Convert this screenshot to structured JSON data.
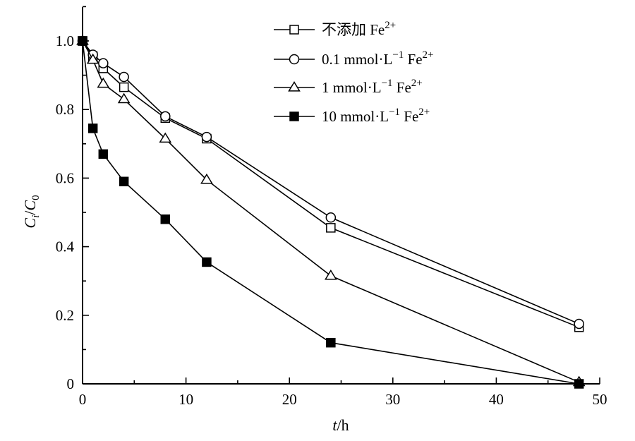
{
  "chart_data": {
    "type": "line",
    "xlabel": {
      "italic": "t",
      "rest": "/h"
    },
    "ylabel": {
      "main": "C",
      "main_sub": "i",
      "sep": "/",
      "denom": "C",
      "denom_sub": "0"
    },
    "xlim": [
      0,
      50
    ],
    "ylim": [
      0,
      1.1
    ],
    "x_ticks": [
      0,
      10,
      20,
      30,
      40,
      50
    ],
    "x_tick_labels": [
      "0",
      "10",
      "20",
      "30",
      "40",
      "50"
    ],
    "y_ticks": [
      0,
      0.2,
      0.4,
      0.6,
      0.8,
      1.0
    ],
    "y_tick_labels": [
      "0",
      "0.2",
      "0.4",
      "0.6",
      "0.8",
      "1.0"
    ],
    "grid": false,
    "legend_position": "top-right",
    "x": [
      0,
      1,
      2,
      4,
      8,
      12,
      24,
      48
    ],
    "series": [
      {
        "name": "不添加 Fe",
        "name_sup": "2+",
        "marker": "square-open",
        "values": [
          1.0,
          0.955,
          0.92,
          0.865,
          0.775,
          0.715,
          0.455,
          0.165
        ]
      },
      {
        "name": "0.1 mmol·L",
        "name_sup_mid": "−1",
        "name_tail": " Fe",
        "name_sup": "2+",
        "marker": "circle-open",
        "values": [
          1.0,
          0.96,
          0.935,
          0.895,
          0.78,
          0.72,
          0.485,
          0.175
        ]
      },
      {
        "name": "1 mmol·L",
        "name_sup_mid": "−1",
        "name_tail": " Fe",
        "name_sup": "2+",
        "marker": "triangle-open",
        "values": [
          1.0,
          0.945,
          0.875,
          0.83,
          0.715,
          0.595,
          0.315,
          0.005
        ]
      },
      {
        "name": "10 mmol·L",
        "name_sup_mid": "−1",
        "name_tail": " Fe",
        "name_sup": "2+",
        "marker": "square-filled",
        "values": [
          1.0,
          0.745,
          0.67,
          0.59,
          0.48,
          0.355,
          0.12,
          0.0
        ]
      }
    ]
  }
}
